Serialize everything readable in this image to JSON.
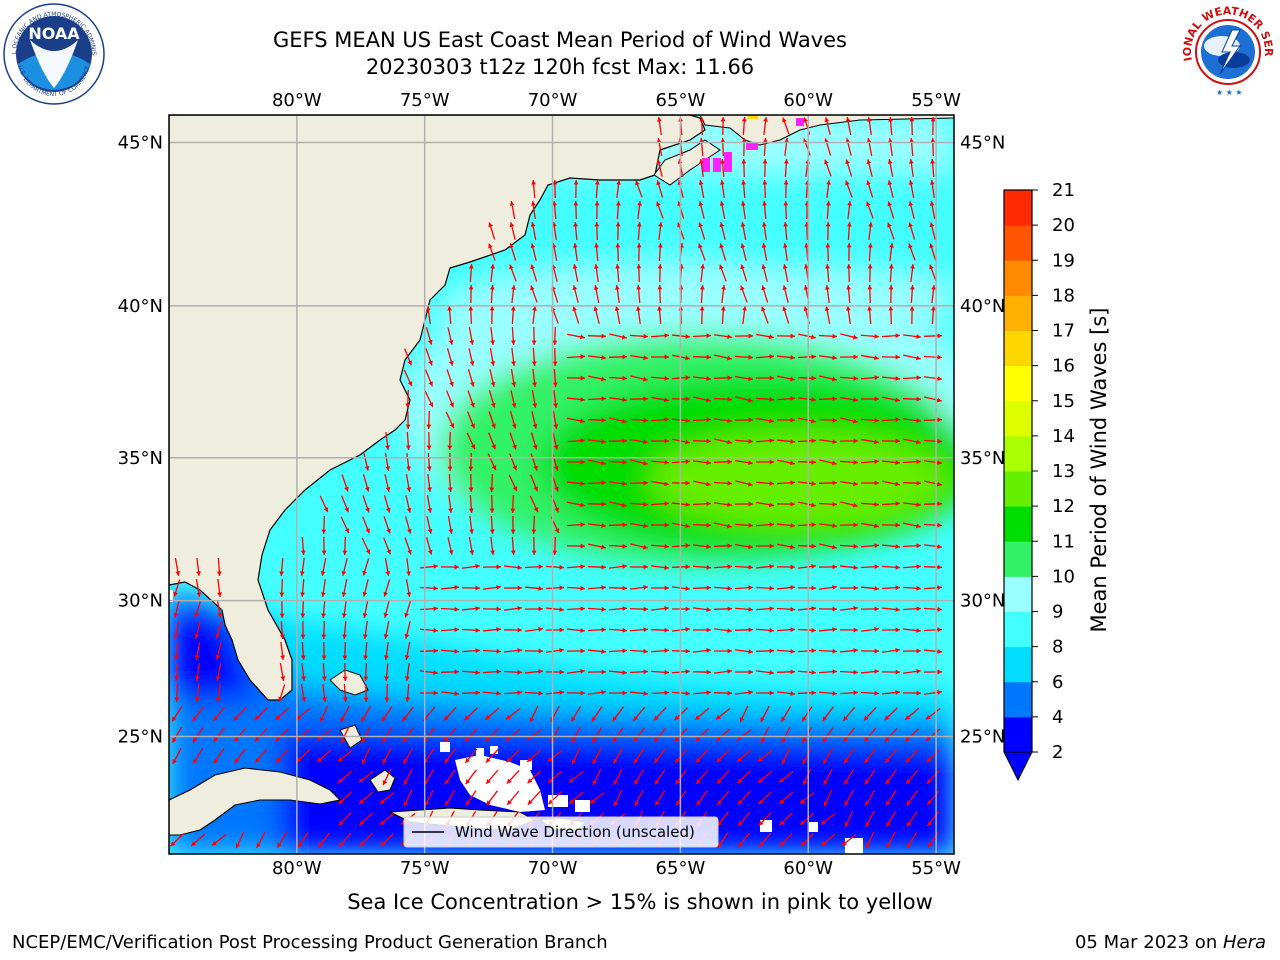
{
  "header": {
    "title_line1": "GEFS MEAN US East Coast Mean Period of Wind Waves",
    "title_line2": "20230303 t12z 120h fcst   Max: 11.66"
  },
  "subtitle": "Sea Ice Concentration > 15% is shown in pink to yellow",
  "footer": {
    "left": "NCEP/EMC/Verification Post Processing Product Generation Branch",
    "right_date": "05 Mar 2023 on ",
    "right_machine": "Hera"
  },
  "logos": {
    "noaa_text": "NOAA",
    "noaa_ring_text": "NATIONAL OCEANIC AND ATMOSPHERIC ADMINISTRATION",
    "noaa_ring_bottom": "U.S. DEPARTMENT OF COMMERCE",
    "nws_ring_text": "NATIONAL WEATHER SERVICE"
  },
  "map": {
    "lon_labels": [
      "80°W",
      "75°W",
      "70°W",
      "65°W",
      "60°W",
      "55°W"
    ],
    "lat_labels": [
      "45°N",
      "40°N",
      "35°N",
      "30°N",
      "25°N"
    ],
    "lon_values": [
      -80,
      -75,
      -70,
      -65,
      -60,
      -55
    ],
    "lat_values": [
      45,
      40,
      35,
      30,
      25
    ],
    "extent": {
      "lon_min": -85,
      "lon_max": -54.3,
      "lat_min": 20.5,
      "lat_max": 45.8
    },
    "colors": {
      "land": "#efedde",
      "coast": "#000000",
      "grid": "#b0b0b0",
      "arrow": "#ff0000",
      "ice": "#ff22ff"
    },
    "legend_label": "Wind Wave Direction (unscaled)"
  },
  "colorbar": {
    "label": "Mean Period of Wind Waves [s]",
    "ticks": [
      "2",
      "4",
      "6",
      "8",
      "9",
      "10",
      "11",
      "12",
      "13",
      "14",
      "15",
      "16",
      "17",
      "18",
      "19",
      "20",
      "21"
    ],
    "colors": [
      "#0000ff",
      "#0077ff",
      "#00ddff",
      "#44ffff",
      "#99ffff",
      "#33f266",
      "#00dd00",
      "#66ee00",
      "#aaff00",
      "#ddff00",
      "#ffff00",
      "#ffd700",
      "#ffb000",
      "#ff8a00",
      "#ff5500",
      "#ff2a00",
      "#ff0000"
    ]
  }
}
